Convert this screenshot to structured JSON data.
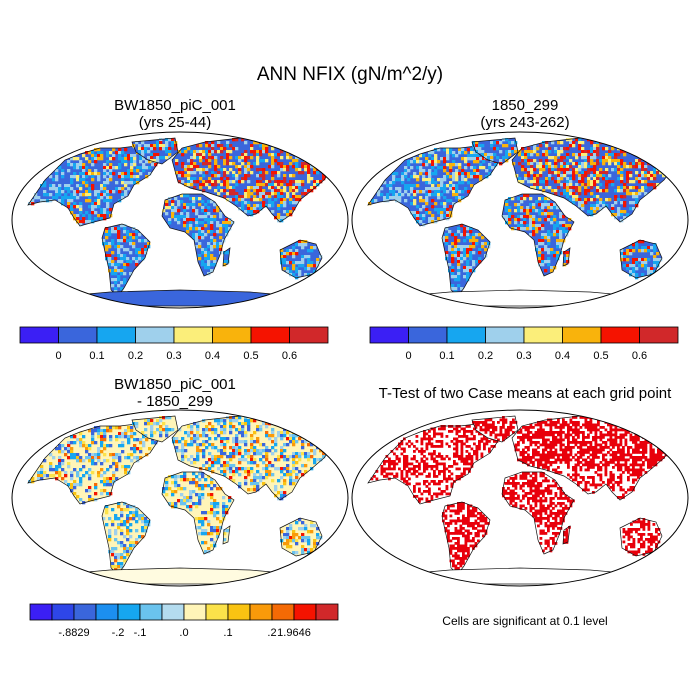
{
  "title": "ANN NFIX (gN/m^2/y)",
  "panels": [
    {
      "line1": "BW1850_piC_001",
      "line2": "(yrs 25-44)",
      "ocean": "#ffffff",
      "base": "#3a66dc",
      "antarctica": "#3a66dc",
      "pattern": "abs",
      "colorbar": {
        "colors": [
          "#3b1ff5",
          "#3a66dc",
          "#16a6f0",
          "#9fd0ec",
          "#fbee7a",
          "#f9b30c",
          "#f51300",
          "#d1282a"
        ],
        "labels": [
          "0",
          "0.1",
          "0.2",
          "0.3",
          "0.4",
          "0.5",
          "0.6"
        ]
      }
    },
    {
      "line1": "1850_299",
      "line2": "(yrs 243-262)",
      "ocean": "#ffffff",
      "base": "#3a66dc",
      "antarctica": "#ffffff",
      "pattern": "abs",
      "colorbar": {
        "colors": [
          "#3b1ff5",
          "#3a66dc",
          "#16a6f0",
          "#9fd0ec",
          "#fbee7a",
          "#f9b30c",
          "#f51300",
          "#d1282a"
        ],
        "labels": [
          "0",
          "0.1",
          "0.2",
          "0.3",
          "0.4",
          "0.5",
          "0.6"
        ]
      }
    },
    {
      "line1": "BW1850_piC_001",
      "line2": "- 1850_299",
      "ocean": "#ffffff",
      "base": "#fff5b8",
      "antarctica": "#fffbe0",
      "pattern": "diff",
      "colorbar": {
        "colors": [
          "#3b1ff5",
          "#2e46e8",
          "#3a66dc",
          "#1c8ff0",
          "#16a6f0",
          "#6ac3ee",
          "#b4dcef",
          "#fff5b8",
          "#fbe24a",
          "#f9c312",
          "#f99a0a",
          "#f56a05",
          "#f51300",
          "#d1282a"
        ],
        "labels": [
          "-.8829",
          "-.2",
          "-.1",
          ".0",
          ".1",
          ".2",
          "1.9646"
        ]
      }
    },
    {
      "line1": "T-Test of two Case means at each grid point",
      "ocean": "#ffffff",
      "base": "#ffffff",
      "antarctica": "#ffffff",
      "pattern": "ttest",
      "note": "Cells are significant at 0.1 level"
    }
  ]
}
